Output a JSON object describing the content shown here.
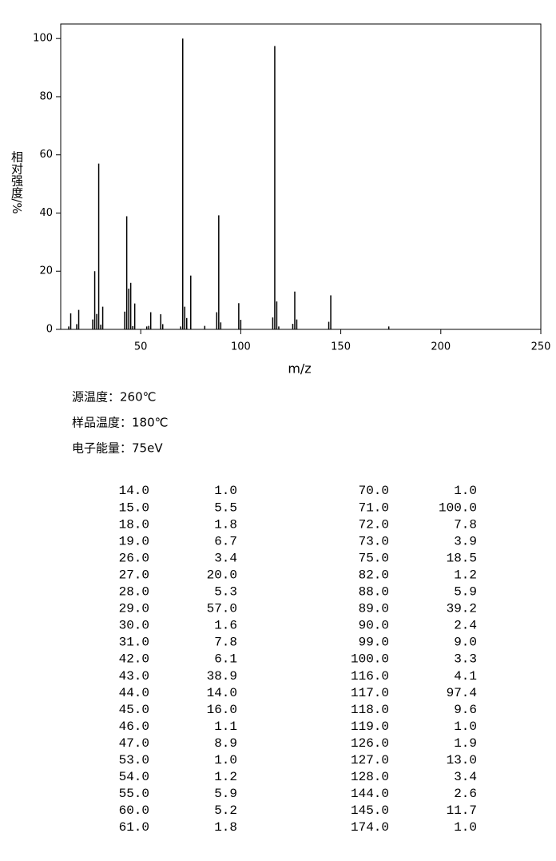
{
  "chart_data": {
    "type": "bar",
    "x_label": "m/z",
    "y_label": "相对强度/%",
    "x": [
      14,
      15,
      18,
      19,
      26,
      27,
      28,
      29,
      30,
      31,
      42,
      43,
      44,
      45,
      46,
      47,
      53,
      54,
      55,
      60,
      61,
      70,
      71,
      72,
      73,
      75,
      82,
      88,
      89,
      90,
      99,
      100,
      116,
      117,
      118,
      119,
      126,
      127,
      128,
      144,
      145,
      174
    ],
    "values": [
      1.0,
      5.5,
      1.8,
      6.7,
      3.4,
      20.0,
      5.3,
      57.0,
      1.6,
      7.8,
      6.1,
      38.9,
      14.0,
      16.0,
      1.1,
      8.9,
      1.0,
      1.2,
      5.9,
      5.2,
      1.8,
      1.0,
      100.0,
      7.8,
      3.9,
      18.5,
      1.2,
      5.9,
      39.2,
      2.4,
      9.0,
      3.3,
      4.1,
      97.4,
      9.6,
      1.0,
      1.9,
      13.0,
      3.4,
      2.6,
      11.7,
      1.0
    ],
    "color": "#000000",
    "xlim": [
      10,
      250
    ],
    "ylim": [
      0,
      105
    ],
    "xticks": [
      50,
      100,
      150,
      200,
      250
    ],
    "yticks": [
      0,
      20,
      40,
      60,
      80,
      100
    ]
  },
  "conditions": [
    "源温度：260℃",
    "样品温度：180℃",
    "电子能量：75eV"
  ],
  "peak_table": {
    "rows": [
      [
        "14.0",
        "1.0",
        "70.0",
        "1.0"
      ],
      [
        "15.0",
        "5.5",
        "71.0",
        "100.0"
      ],
      [
        "18.0",
        "1.8",
        "72.0",
        "7.8"
      ],
      [
        "19.0",
        "6.7",
        "73.0",
        "3.9"
      ],
      [
        "26.0",
        "3.4",
        "75.0",
        "18.5"
      ],
      [
        "27.0",
        "20.0",
        "82.0",
        "1.2"
      ],
      [
        "28.0",
        "5.3",
        "88.0",
        "5.9"
      ],
      [
        "29.0",
        "57.0",
        "89.0",
        "39.2"
      ],
      [
        "30.0",
        "1.6",
        "90.0",
        "2.4"
      ],
      [
        "31.0",
        "7.8",
        "99.0",
        "9.0"
      ],
      [
        "42.0",
        "6.1",
        "100.0",
        "3.3"
      ],
      [
        "43.0",
        "38.9",
        "116.0",
        "4.1"
      ],
      [
        "44.0",
        "14.0",
        "117.0",
        "97.4"
      ],
      [
        "45.0",
        "16.0",
        "118.0",
        "9.6"
      ],
      [
        "46.0",
        "1.1",
        "119.0",
        "1.0"
      ],
      [
        "47.0",
        "8.9",
        "126.0",
        "1.9"
      ],
      [
        "53.0",
        "1.0",
        "127.0",
        "13.0"
      ],
      [
        "54.0",
        "1.2",
        "128.0",
        "3.4"
      ],
      [
        "55.0",
        "5.9",
        "144.0",
        "2.6"
      ],
      [
        "60.0",
        "5.2",
        "145.0",
        "11.7"
      ],
      [
        "61.0",
        "1.8",
        "174.0",
        "1.0"
      ]
    ]
  }
}
